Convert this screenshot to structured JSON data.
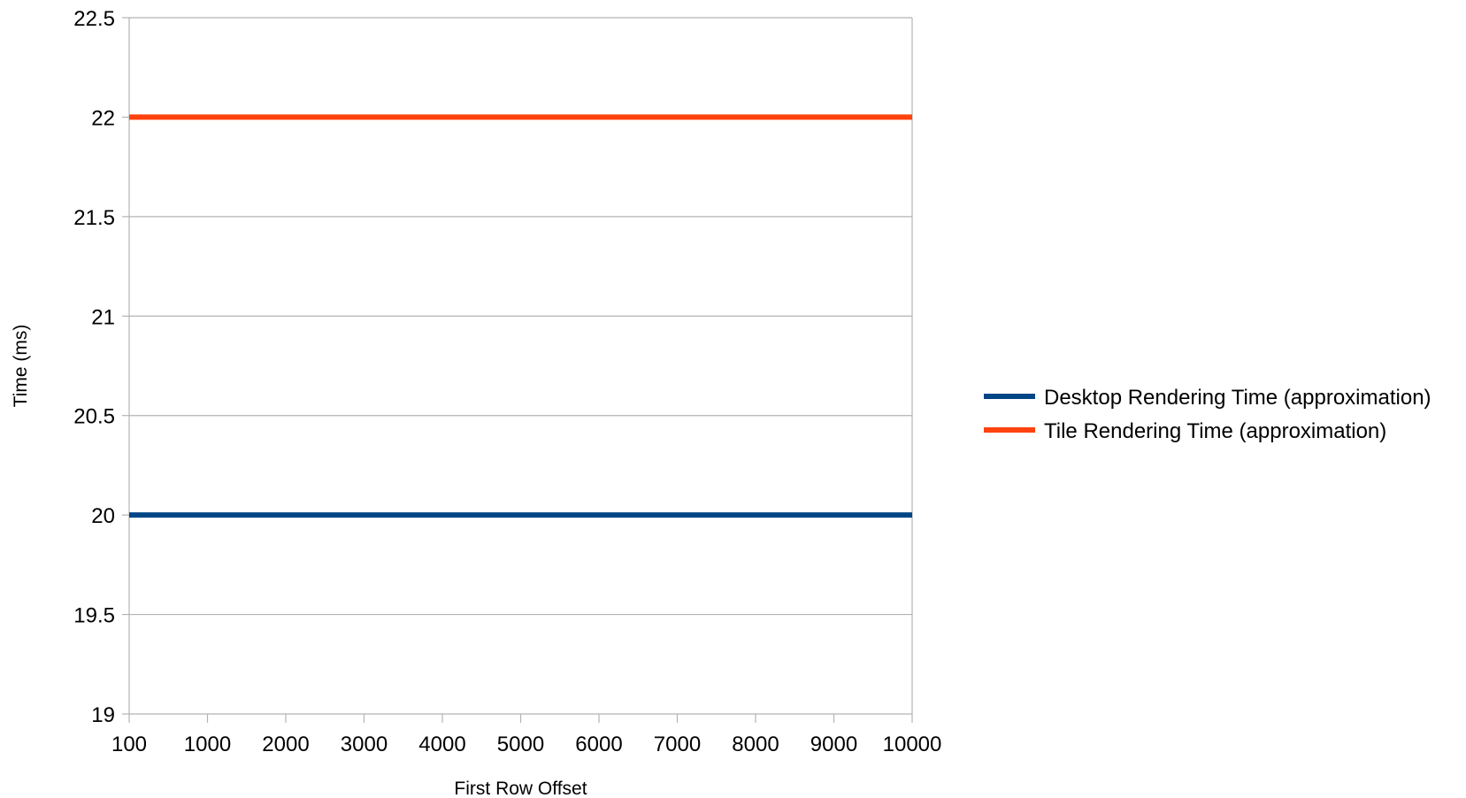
{
  "chart_data": {
    "type": "line",
    "title": "",
    "xlabel": "First Row Offset",
    "ylabel": "Time (ms)",
    "categories": [
      "100",
      "1000",
      "2000",
      "3000",
      "4000",
      "5000",
      "6000",
      "7000",
      "8000",
      "9000",
      "10000"
    ],
    "ylim": [
      19,
      22.5
    ],
    "yticks": [
      "19",
      "19.5",
      "20",
      "20.5",
      "21",
      "21.5",
      "22",
      "22.5"
    ],
    "grid": true,
    "legend_position": "right",
    "series": [
      {
        "name": "Desktop Rendering Time (approximation)",
        "color": "#004586",
        "values": [
          20,
          20,
          20,
          20,
          20,
          20,
          20,
          20,
          20,
          20,
          20
        ]
      },
      {
        "name": "Tile Rendering Time (approximation)",
        "color": "#ff420e",
        "values": [
          22,
          22,
          22,
          22,
          22,
          22,
          22,
          22,
          22,
          22,
          22
        ]
      }
    ]
  }
}
